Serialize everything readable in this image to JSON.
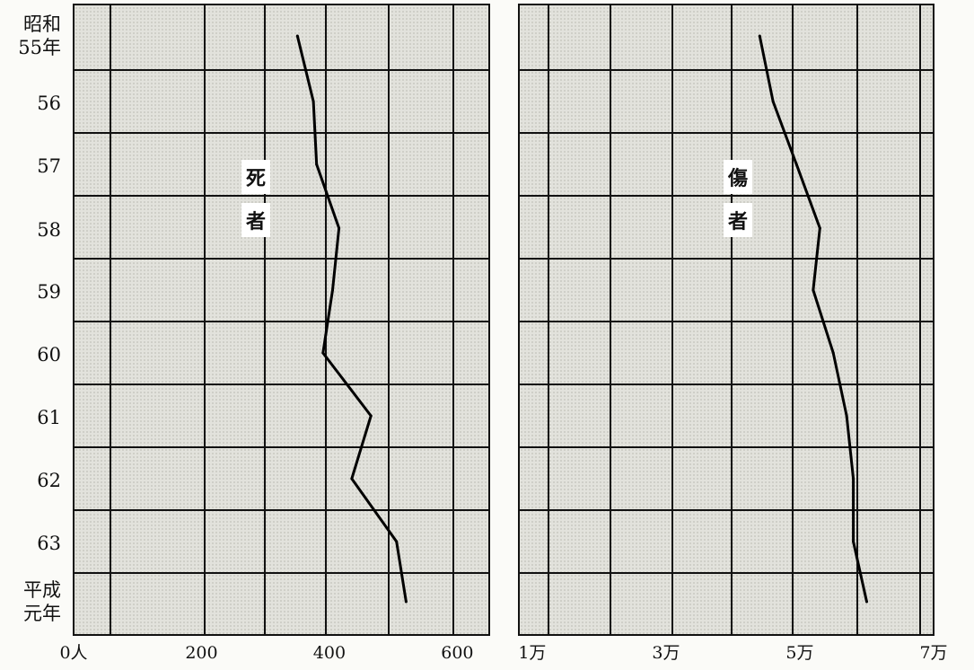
{
  "chart_data": [
    {
      "type": "line",
      "series_label": [
        "死",
        "者"
      ],
      "y_categories": [
        [
          "昭和",
          "55年"
        ],
        [
          "56"
        ],
        [
          "57"
        ],
        [
          "58"
        ],
        [
          "59"
        ],
        [
          "60"
        ],
        [
          "61"
        ],
        [
          "62"
        ],
        [
          "63"
        ],
        [
          "平成",
          "元年"
        ]
      ],
      "x_ticks": [
        {
          "value": 0,
          "label": "0人"
        },
        {
          "value": 200,
          "label": "200"
        },
        {
          "value": 400,
          "label": "400"
        },
        {
          "value": 600,
          "label": "600"
        }
      ],
      "xlim": [
        0,
        650
      ],
      "values": [
        350,
        375,
        380,
        415,
        405,
        390,
        465,
        435,
        505,
        520
      ]
    },
    {
      "type": "line",
      "series_label": [
        "傷",
        "者"
      ],
      "y_categories": [
        [
          "昭和",
          "55年"
        ],
        [
          "56"
        ],
        [
          "57"
        ],
        [
          "58"
        ],
        [
          "59"
        ],
        [
          "60"
        ],
        [
          "61"
        ],
        [
          "62"
        ],
        [
          "63"
        ],
        [
          "平成",
          "元年"
        ]
      ],
      "x_ticks": [
        {
          "value": 10000,
          "label": "1万"
        },
        {
          "value": 30000,
          "label": "3万"
        },
        {
          "value": 50000,
          "label": "5万"
        },
        {
          "value": 70000,
          "label": "7万"
        }
      ],
      "xlim": [
        8000,
        70000
      ],
      "values": [
        44000,
        46000,
        49500,
        53000,
        52000,
        55000,
        57000,
        58000,
        58000,
        60000
      ]
    }
  ]
}
